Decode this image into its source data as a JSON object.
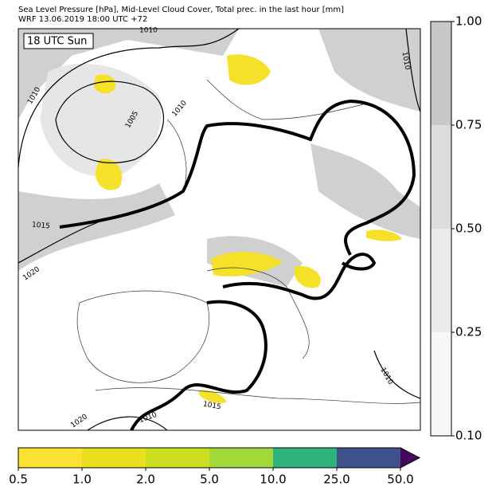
{
  "header": {
    "line1": "Sea Level Pressure [hPa], Mid-Level Cloud Cover, Total prec. in the last hour [mm]",
    "line2": "WRF 13.06.2019 18:00 UTC +72"
  },
  "map": {
    "time_label": "18 UTC Sun",
    "isobar_labels": [
      "1010",
      "1010",
      "1010",
      "1010",
      "1010",
      "1010",
      "1005",
      "1015",
      "1015",
      "1020",
      "1020"
    ]
  },
  "cloud_colorbar": {
    "ticks": [
      "1.00",
      "0.75",
      "0.50",
      "0.25",
      "0.10"
    ],
    "colors": [
      "#c8c8c8",
      "#dcdcdc",
      "#ebebeb",
      "#f7f7f7"
    ]
  },
  "precip_colorbar": {
    "ticks": [
      "0.5",
      "1.0",
      "2.0",
      "5.0",
      "10.0",
      "25.0",
      "50.0"
    ],
    "colors": [
      "#f9e231",
      "#e9df1f",
      "#cddd1f",
      "#a2d93a",
      "#2db37b",
      "#3f518a"
    ],
    "extend_color": "#46085c"
  }
}
